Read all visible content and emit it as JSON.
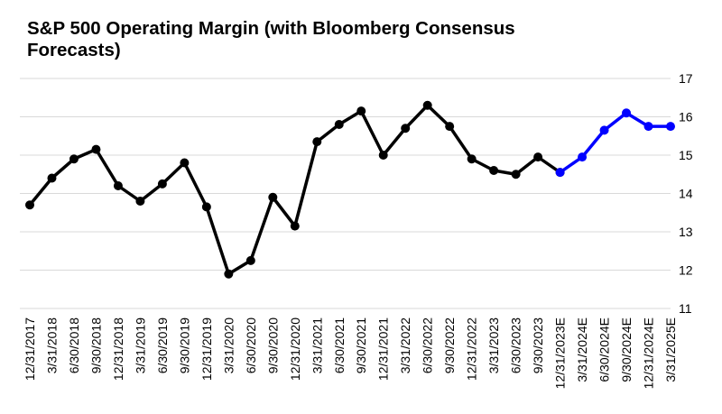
{
  "chart_data": {
    "type": "line",
    "title": "S&P 500 Operating Margin (with Bloomberg Consensus Forecasts)",
    "categories": [
      "12/31/2017",
      "3/31/2018",
      "6/30/2018",
      "9/30/2018",
      "12/31/2018",
      "3/31/2019",
      "6/30/2019",
      "9/30/2019",
      "12/31/2019",
      "3/31/2020",
      "6/30/2020",
      "9/30/2020",
      "12/31/2020",
      "3/31/2021",
      "6/30/2021",
      "9/30/2021",
      "12/31/2021",
      "3/31/2022",
      "6/30/2022",
      "9/30/2022",
      "12/31/2022",
      "3/31/2023",
      "6/30/2023",
      "9/30/2023",
      "12/31/2023E",
      "3/31/2024E",
      "6/30/2024E",
      "9/30/2024E",
      "12/31/2024E",
      "3/31/2025E"
    ],
    "series": [
      {
        "values": [
          13.7,
          14.4,
          14.9,
          15.15,
          14.2,
          13.8,
          14.25,
          14.8,
          13.65,
          11.9,
          12.25,
          13.9,
          13.15,
          15.35,
          15.8,
          16.15,
          15.0,
          15.7,
          16.3,
          15.75,
          14.9,
          14.6,
          14.5,
          14.95,
          14.55,
          null,
          null,
          null,
          null,
          null
        ],
        "color": "#000000"
      },
      {
        "values": [
          null,
          null,
          null,
          null,
          null,
          null,
          null,
          null,
          null,
          null,
          null,
          null,
          null,
          null,
          null,
          null,
          null,
          null,
          null,
          null,
          null,
          null,
          null,
          null,
          14.55,
          14.95,
          15.65,
          16.1,
          15.75,
          15.75
        ],
        "color": "#0000ff"
      }
    ],
    "ylim": [
      11,
      17
    ],
    "yticks": [
      "11",
      "12",
      "13",
      "14",
      "15",
      "16",
      "17"
    ],
    "grid": true,
    "y_axis_side": "right"
  }
}
